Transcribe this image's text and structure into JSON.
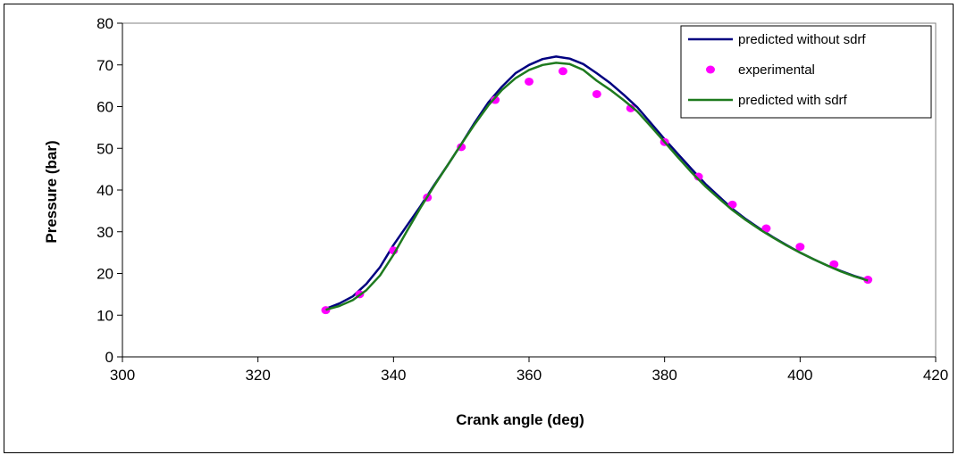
{
  "chart_data": {
    "type": "line",
    "xlabel": "Crank angle (deg)",
    "ylabel": "Pressure (bar)",
    "xlim": [
      300,
      420
    ],
    "ylim": [
      0,
      80
    ],
    "x_ticks": [
      300,
      320,
      340,
      360,
      380,
      400,
      420
    ],
    "y_ticks": [
      0,
      10,
      20,
      30,
      40,
      50,
      60,
      70,
      80
    ],
    "grid": false,
    "legend_position": "top-right",
    "series": [
      {
        "name": "predicted without sdrf",
        "style": "line",
        "color": "#000080",
        "x": [
          330,
          332,
          334,
          336,
          338,
          340,
          342,
          344,
          346,
          348,
          350,
          352,
          354,
          356,
          358,
          360,
          362,
          364,
          366,
          368,
          370,
          372,
          374,
          376,
          378,
          380,
          382,
          384,
          386,
          388,
          390,
          392,
          394,
          396,
          398,
          400,
          402,
          404,
          406,
          408,
          410
        ],
        "y": [
          11.5,
          12.8,
          14.5,
          17.5,
          21.5,
          26.8,
          31.5,
          36.2,
          41.2,
          46.0,
          51.0,
          56.2,
          61.0,
          64.8,
          68.0,
          70.0,
          71.4,
          72.0,
          71.5,
          70.2,
          68.0,
          65.6,
          62.8,
          59.8,
          56.0,
          52.2,
          48.6,
          45.0,
          41.5,
          38.5,
          35.5,
          33.0,
          30.8,
          28.7,
          26.8,
          25.0,
          23.4,
          21.9,
          20.6,
          19.4,
          18.4
        ]
      },
      {
        "name": "experimental",
        "style": "markers",
        "color": "#ff00ff",
        "x": [
          330,
          335,
          340,
          345,
          350,
          355,
          360,
          365,
          370,
          375,
          380,
          385,
          390,
          395,
          400,
          405,
          410
        ],
        "y": [
          11.2,
          15.0,
          25.5,
          38.2,
          50.3,
          61.6,
          66.0,
          68.5,
          63.0,
          59.6,
          51.5,
          43.2,
          36.5,
          30.8,
          26.4,
          22.2,
          18.5
        ]
      },
      {
        "name": "predicted with sdrf",
        "style": "line",
        "color": "#1e7a1e",
        "x": [
          330,
          332,
          334,
          336,
          338,
          340,
          342,
          344,
          346,
          348,
          350,
          352,
          354,
          356,
          358,
          360,
          362,
          364,
          366,
          368,
          370,
          372,
          374,
          376,
          378,
          380,
          382,
          384,
          386,
          388,
          390,
          392,
          394,
          396,
          398,
          400,
          402,
          404,
          406,
          408,
          410
        ],
        "y": [
          11.3,
          12.2,
          13.6,
          16.0,
          19.5,
          24.5,
          30.2,
          35.8,
          41.0,
          46.0,
          51.0,
          55.8,
          60.3,
          64.0,
          66.8,
          68.8,
          70.0,
          70.5,
          70.2,
          68.8,
          66.2,
          64.0,
          61.5,
          58.8,
          55.2,
          51.5,
          47.8,
          44.2,
          40.9,
          38.0,
          35.2,
          32.8,
          30.6,
          28.6,
          26.7,
          25.0,
          23.4,
          21.9,
          20.5,
          19.3,
          18.3
        ]
      }
    ]
  }
}
